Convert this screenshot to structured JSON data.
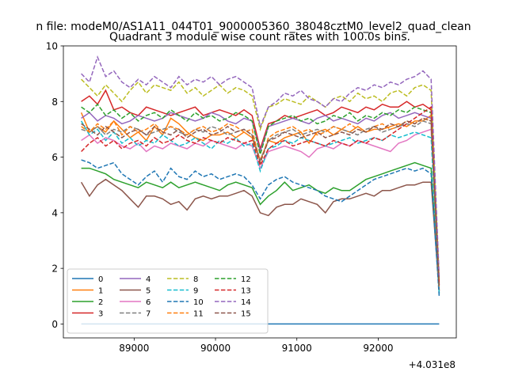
{
  "chart_data": {
    "type": "line",
    "suptitle": "n file: modeM0/AS1A11_044T01_9000005360_38048cztM0_level2_quad_clean",
    "title": "Quadrant 3 module wise count rates with 100.0s bins.",
    "xlabel": "",
    "ylabel": "",
    "offset_text": "+4.031e8",
    "xlim": [
      88130,
      92960
    ],
    "ylim": [
      -0.5,
      10.0
    ],
    "xticks": [
      89000,
      90000,
      91000,
      92000
    ],
    "xtick_labels": [
      "89000",
      "90000",
      "91000",
      "92000"
    ],
    "yticks": [
      0,
      2,
      4,
      6,
      8,
      10
    ],
    "ytick_labels": [
      "0",
      "2",
      "4",
      "6",
      "8",
      "10"
    ],
    "x_start": 88350,
    "x_step": 100,
    "grid": false,
    "legend": {
      "placement": "lower-left",
      "ncol": 4
    },
    "series": [
      {
        "name": "0",
        "color": "#1f77b4",
        "dash": false,
        "values": [
          0,
          0,
          0,
          0,
          0,
          0,
          0,
          0,
          0,
          0,
          0,
          0,
          0,
          0,
          0,
          0,
          0,
          0,
          0,
          0,
          0,
          0,
          0,
          0,
          0,
          0,
          0,
          0,
          0,
          0,
          0,
          0,
          0,
          0,
          0,
          0,
          0,
          0,
          0,
          0,
          0,
          0,
          0,
          0,
          0
        ]
      },
      {
        "name": "1",
        "color": "#ff7f0e",
        "dash": false,
        "values": [
          7.6,
          6.9,
          7.1,
          6.9,
          7.3,
          7.0,
          6.7,
          6.9,
          6.6,
          7.1,
          6.8,
          7.4,
          7.2,
          6.9,
          6.7,
          6.6,
          6.8,
          6.8,
          6.9,
          6.7,
          6.9,
          6.7,
          5.9,
          6.6,
          6.5,
          6.7,
          6.8,
          6.9,
          6.5,
          6.9,
          7.0,
          6.8,
          7.0,
          6.9,
          7.1,
          6.9,
          7.0,
          7.0,
          7.1,
          7.2,
          7.1,
          7.3,
          7.3,
          7.5,
          1.2
        ]
      },
      {
        "name": "2",
        "color": "#2ca02c",
        "dash": false,
        "values": [
          5.6,
          5.6,
          5.5,
          5.4,
          5.2,
          5.1,
          5.0,
          4.9,
          5.1,
          5.0,
          4.9,
          5.1,
          4.9,
          5.0,
          5.1,
          5.0,
          4.9,
          4.8,
          5.0,
          5.1,
          5.0,
          4.9,
          4.3,
          4.6,
          4.8,
          5.1,
          4.8,
          4.9,
          5.0,
          4.8,
          4.7,
          4.9,
          4.8,
          4.8,
          5.0,
          5.2,
          5.3,
          5.4,
          5.5,
          5.6,
          5.7,
          5.8,
          5.7,
          5.6,
          1.1
        ]
      },
      {
        "name": "3",
        "color": "#d62728",
        "dash": false,
        "values": [
          8.0,
          8.2,
          7.9,
          8.4,
          7.7,
          7.8,
          7.6,
          7.5,
          7.8,
          7.7,
          7.6,
          7.5,
          7.6,
          7.7,
          7.8,
          7.5,
          7.6,
          7.7,
          7.6,
          7.5,
          7.7,
          7.5,
          6.3,
          7.2,
          7.3,
          7.5,
          7.4,
          7.5,
          7.6,
          7.7,
          7.5,
          7.6,
          7.8,
          7.7,
          7.6,
          7.8,
          7.7,
          7.9,
          7.8,
          7.8,
          8.0,
          7.8,
          7.9,
          7.7,
          1.4
        ]
      },
      {
        "name": "4",
        "color": "#9467bd",
        "dash": false,
        "values": [
          7.4,
          7.6,
          7.3,
          7.5,
          7.4,
          7.2,
          7.3,
          7.5,
          7.4,
          7.3,
          7.4,
          7.6,
          7.5,
          7.4,
          7.3,
          7.4,
          7.6,
          7.5,
          7.3,
          7.2,
          7.4,
          7.3,
          6.2,
          7.1,
          7.2,
          7.3,
          7.4,
          7.3,
          7.2,
          7.4,
          7.5,
          7.3,
          7.4,
          7.3,
          7.2,
          7.4,
          7.3,
          7.5,
          7.6,
          7.4,
          7.5,
          7.6,
          7.5,
          7.4,
          1.4
        ]
      },
      {
        "name": "5",
        "color": "#8c564b",
        "dash": false,
        "values": [
          5.1,
          4.6,
          5.0,
          5.2,
          5.0,
          4.8,
          4.5,
          4.2,
          4.6,
          4.6,
          4.5,
          4.3,
          4.4,
          4.1,
          4.5,
          4.6,
          4.5,
          4.6,
          4.6,
          4.7,
          4.8,
          4.6,
          4.0,
          3.9,
          4.2,
          4.3,
          4.3,
          4.5,
          4.4,
          4.3,
          4.0,
          4.4,
          4.5,
          4.5,
          4.6,
          4.7,
          4.6,
          4.8,
          4.8,
          4.9,
          5.0,
          5.0,
          5.1,
          5.1,
          1.2
        ]
      },
      {
        "name": "6",
        "color": "#e377c2",
        "dash": false,
        "values": [
          6.6,
          6.8,
          6.5,
          6.7,
          6.6,
          6.4,
          6.3,
          6.5,
          6.2,
          6.4,
          6.3,
          6.5,
          6.4,
          6.3,
          6.5,
          6.4,
          6.6,
          6.5,
          6.4,
          6.3,
          6.5,
          6.4,
          5.6,
          6.2,
          6.3,
          6.4,
          6.3,
          6.2,
          6.0,
          6.3,
          6.4,
          6.3,
          6.5,
          6.4,
          6.6,
          6.5,
          6.4,
          6.3,
          6.2,
          6.5,
          6.6,
          6.8,
          6.9,
          7.0,
          1.3
        ]
      },
      {
        "name": "7",
        "color": "#7f7f7f",
        "dash": true,
        "values": [
          7.0,
          6.9,
          7.1,
          6.8,
          7.0,
          6.9,
          7.1,
          7.0,
          6.8,
          6.9,
          7.0,
          7.1,
          6.9,
          6.8,
          7.0,
          6.9,
          7.1,
          7.0,
          6.8,
          6.9,
          7.0,
          6.8,
          5.9,
          6.6,
          6.8,
          6.9,
          7.0,
          6.8,
          6.9,
          7.0,
          6.9,
          7.1,
          7.0,
          6.9,
          6.8,
          7.0,
          7.1,
          6.9,
          7.0,
          7.1,
          7.2,
          7.1,
          7.3,
          7.2,
          1.2
        ]
      },
      {
        "name": "8",
        "color": "#bcbd22",
        "dash": true,
        "values": [
          8.8,
          8.5,
          8.2,
          8.6,
          8.3,
          8.0,
          8.4,
          8.7,
          8.3,
          8.6,
          8.5,
          8.4,
          8.7,
          8.3,
          8.5,
          8.2,
          8.4,
          8.6,
          8.3,
          8.5,
          8.4,
          8.2,
          7.0,
          7.8,
          7.9,
          8.1,
          8.0,
          7.9,
          8.2,
          8.0,
          7.8,
          8.1,
          8.2,
          8.0,
          8.3,
          8.1,
          8.2,
          8.0,
          8.3,
          8.4,
          8.2,
          8.5,
          8.6,
          8.4,
          1.6
        ]
      },
      {
        "name": "9",
        "color": "#17becf",
        "dash": true,
        "values": [
          7.3,
          6.8,
          7.0,
          6.6,
          6.9,
          6.5,
          6.7,
          6.4,
          6.6,
          6.5,
          6.8,
          6.6,
          6.4,
          6.5,
          6.7,
          6.5,
          6.3,
          6.6,
          6.5,
          6.7,
          6.4,
          6.5,
          5.5,
          6.3,
          6.4,
          6.6,
          6.5,
          6.7,
          6.6,
          6.5,
          6.4,
          6.5,
          6.6,
          6.7,
          6.5,
          6.6,
          6.7,
          6.6,
          6.8,
          6.7,
          6.8,
          6.9,
          6.8,
          6.7,
          1.1
        ]
      },
      {
        "name": "10",
        "color": "#1f77b4",
        "dash": true,
        "values": [
          5.9,
          5.8,
          5.6,
          5.7,
          5.8,
          5.4,
          5.2,
          5.0,
          5.3,
          5.5,
          5.1,
          5.6,
          5.3,
          5.2,
          5.5,
          5.3,
          5.4,
          5.2,
          5.3,
          5.4,
          5.3,
          5.0,
          4.5,
          5.0,
          5.2,
          5.3,
          5.1,
          5.0,
          4.9,
          4.8,
          4.6,
          4.5,
          4.4,
          4.6,
          4.8,
          5.0,
          5.2,
          5.3,
          5.4,
          5.5,
          5.6,
          5.5,
          5.6,
          5.4,
          1.0
        ]
      },
      {
        "name": "11",
        "color": "#ff7f0e",
        "dash": true,
        "values": [
          7.1,
          6.9,
          7.2,
          7.0,
          7.3,
          6.8,
          7.1,
          6.9,
          7.0,
          7.2,
          6.9,
          7.1,
          7.0,
          6.8,
          7.0,
          7.1,
          6.9,
          7.0,
          7.2,
          7.1,
          6.9,
          7.0,
          5.8,
          6.7,
          6.9,
          7.0,
          7.1,
          6.9,
          7.0,
          6.8,
          6.9,
          7.1,
          7.0,
          7.2,
          7.0,
          6.9,
          7.1,
          7.2,
          7.0,
          7.1,
          7.3,
          7.2,
          7.4,
          7.3,
          1.3
        ]
      },
      {
        "name": "12",
        "color": "#2ca02c",
        "dash": true,
        "values": [
          7.8,
          7.6,
          7.9,
          7.5,
          7.7,
          7.4,
          7.6,
          7.3,
          7.5,
          7.6,
          7.4,
          7.7,
          7.5,
          7.3,
          7.6,
          7.4,
          7.5,
          7.3,
          7.4,
          7.6,
          7.5,
          7.3,
          6.1,
          7.1,
          7.3,
          7.4,
          7.5,
          7.3,
          7.4,
          7.2,
          7.3,
          7.5,
          7.4,
          7.6,
          7.3,
          7.5,
          7.4,
          7.6,
          7.5,
          7.7,
          7.6,
          7.8,
          7.7,
          7.6,
          1.4
        ]
      },
      {
        "name": "13",
        "color": "#d62728",
        "dash": true,
        "values": [
          6.2,
          6.5,
          6.7,
          6.4,
          6.6,
          6.3,
          6.5,
          6.6,
          6.4,
          6.7,
          6.5,
          6.6,
          6.8,
          6.6,
          6.5,
          6.7,
          6.6,
          6.5,
          6.7,
          6.6,
          6.5,
          6.6,
          5.7,
          6.3,
          6.5,
          6.6,
          6.4,
          6.5,
          6.6,
          6.5,
          6.4,
          6.6,
          6.5,
          6.4,
          6.6,
          6.5,
          6.7,
          6.6,
          6.8,
          7.0,
          7.2,
          7.4,
          7.6,
          7.8,
          1.5
        ]
      },
      {
        "name": "14",
        "color": "#9467bd",
        "dash": true,
        "values": [
          9.0,
          8.7,
          9.6,
          8.9,
          9.1,
          8.7,
          8.5,
          8.8,
          8.6,
          8.9,
          8.7,
          8.5,
          8.9,
          8.6,
          8.8,
          8.7,
          8.9,
          8.6,
          8.8,
          8.9,
          8.7,
          8.5,
          7.1,
          7.8,
          8.0,
          8.3,
          8.2,
          8.4,
          8.1,
          8.0,
          7.8,
          8.1,
          8.0,
          8.3,
          8.5,
          8.4,
          8.6,
          8.5,
          8.7,
          8.6,
          8.8,
          8.9,
          9.1,
          8.8,
          1.7
        ]
      },
      {
        "name": "15",
        "color": "#8c564b",
        "dash": true,
        "values": [
          7.2,
          7.0,
          6.8,
          7.1,
          6.9,
          6.7,
          6.9,
          7.0,
          6.8,
          7.1,
          6.9,
          6.8,
          7.0,
          6.7,
          6.9,
          7.0,
          6.8,
          6.9,
          7.1,
          6.9,
          7.0,
          6.8,
          5.8,
          6.6,
          6.7,
          6.9,
          6.8,
          6.7,
          6.8,
          6.9,
          6.7,
          6.8,
          6.9,
          6.8,
          7.0,
          6.9,
          7.1,
          7.0,
          7.2,
          7.1,
          7.3,
          7.2,
          7.4,
          7.3,
          1.3
        ]
      }
    ]
  }
}
